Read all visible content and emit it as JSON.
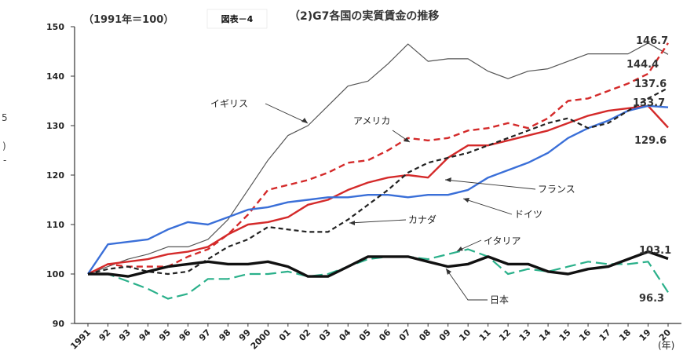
{
  "header": {
    "index_note": "（1991年＝100）",
    "figure_label": "図表－4",
    "title": "（2)G7各国の実質賃金の推移",
    "year_unit": "(年)",
    "edge_marks": [
      "5",
      ")",
      "-"
    ]
  },
  "chart_data": {
    "type": "line",
    "title": "（2)G7各国の実質賃金の推移",
    "ylim": [
      90,
      150
    ],
    "yticks": [
      90,
      100,
      110,
      120,
      130,
      140,
      150
    ],
    "grid": false,
    "x": [
      "1991",
      "92",
      "93",
      "94",
      "95",
      "96",
      "97",
      "98",
      "99",
      "2000",
      "01",
      "02",
      "03",
      "04",
      "05",
      "06",
      "07",
      "08",
      "09",
      "10",
      "11",
      "12",
      "13",
      "14",
      "15",
      "16",
      "17",
      "18",
      "19",
      "20"
    ],
    "series": [
      {
        "name": "イギリス",
        "color": "#555555",
        "dash": "solid",
        "width": 1.2,
        "values": [
          100,
          101.5,
          103,
          104,
          105.5,
          105.5,
          107,
          111,
          117,
          123,
          128,
          130,
          134,
          138,
          139,
          142.5,
          146.5,
          143,
          143.5,
          143.5,
          141,
          139.5,
          141,
          141.5,
          143,
          144.5,
          144.5,
          144.5,
          146.7,
          144.4
        ]
      },
      {
        "name": "アメリカ",
        "color": "#d42a2a",
        "dash": "8,5",
        "width": 2.4,
        "values": [
          100,
          102,
          101.5,
          101.5,
          101.5,
          103.5,
          105,
          108,
          112,
          117,
          118,
          119,
          120.5,
          122.5,
          123,
          125,
          127.5,
          127,
          127.5,
          129,
          129.5,
          130.5,
          129.5,
          131.5,
          135,
          135.5,
          137,
          138.5,
          140.5,
          146.7
        ]
      },
      {
        "name": "フランス",
        "color": "#d42a2a",
        "dash": "solid",
        "width": 2.4,
        "values": [
          100,
          102,
          102.5,
          103,
          104,
          104.5,
          105.5,
          108,
          110,
          110.5,
          111.5,
          114,
          115,
          117,
          118.5,
          119.5,
          120,
          119.5,
          123.5,
          126,
          126,
          127,
          128,
          129,
          130.5,
          132,
          133,
          133.5,
          134,
          129.6
        ]
      },
      {
        "name": "ドイツ",
        "color": "#3a6fd8",
        "dash": "solid",
        "width": 2.4,
        "values": [
          100,
          106,
          106.5,
          107,
          109,
          110.5,
          110,
          111.5,
          113,
          113.5,
          114.5,
          115,
          115.5,
          115.5,
          116,
          116,
          115.5,
          116,
          116,
          117,
          119.5,
          121,
          122.5,
          124.5,
          127.5,
          129.5,
          131,
          133,
          134,
          133.7
        ]
      },
      {
        "name": "カナダ",
        "color": "#222222",
        "dash": "6,4",
        "width": 2.2,
        "values": [
          100,
          101,
          101.5,
          100.5,
          100,
          100.5,
          103,
          105.5,
          107,
          109.5,
          109,
          108.5,
          108.5,
          111,
          114,
          117,
          120.5,
          122.5,
          123.5,
          124.5,
          126,
          127.5,
          129,
          130.5,
          131.5,
          129.5,
          130.5,
          133,
          135.5,
          137.6
        ]
      },
      {
        "name": "イタリア",
        "color": "#2ab08a",
        "dash": "14,6",
        "width": 2.2,
        "values": [
          100,
          100,
          98.5,
          97,
          95,
          96,
          99,
          99,
          100,
          100,
          100.5,
          99.5,
          100,
          101.5,
          103,
          103.5,
          103.5,
          103,
          104,
          105,
          103.5,
          100,
          101,
          100.5,
          101.5,
          102.5,
          102,
          102,
          102.5,
          96.3
        ]
      },
      {
        "name": "日本",
        "color": "#111111",
        "dash": "solid",
        "width": 3.4,
        "values": [
          100,
          100,
          99.5,
          100.5,
          101.5,
          102,
          102.5,
          102,
          102,
          102.5,
          101.5,
          99.5,
          99.5,
          101.5,
          103.5,
          103.5,
          103.5,
          102.5,
          101.5,
          102,
          103.5,
          102,
          102,
          100.5,
          100,
          101,
          101.5,
          103,
          104.5,
          103.1
        ]
      }
    ],
    "end_labels": [
      "146.7",
      "144.4",
      "137.6",
      "133.7",
      "129.6",
      "103.1",
      "96.3"
    ]
  }
}
